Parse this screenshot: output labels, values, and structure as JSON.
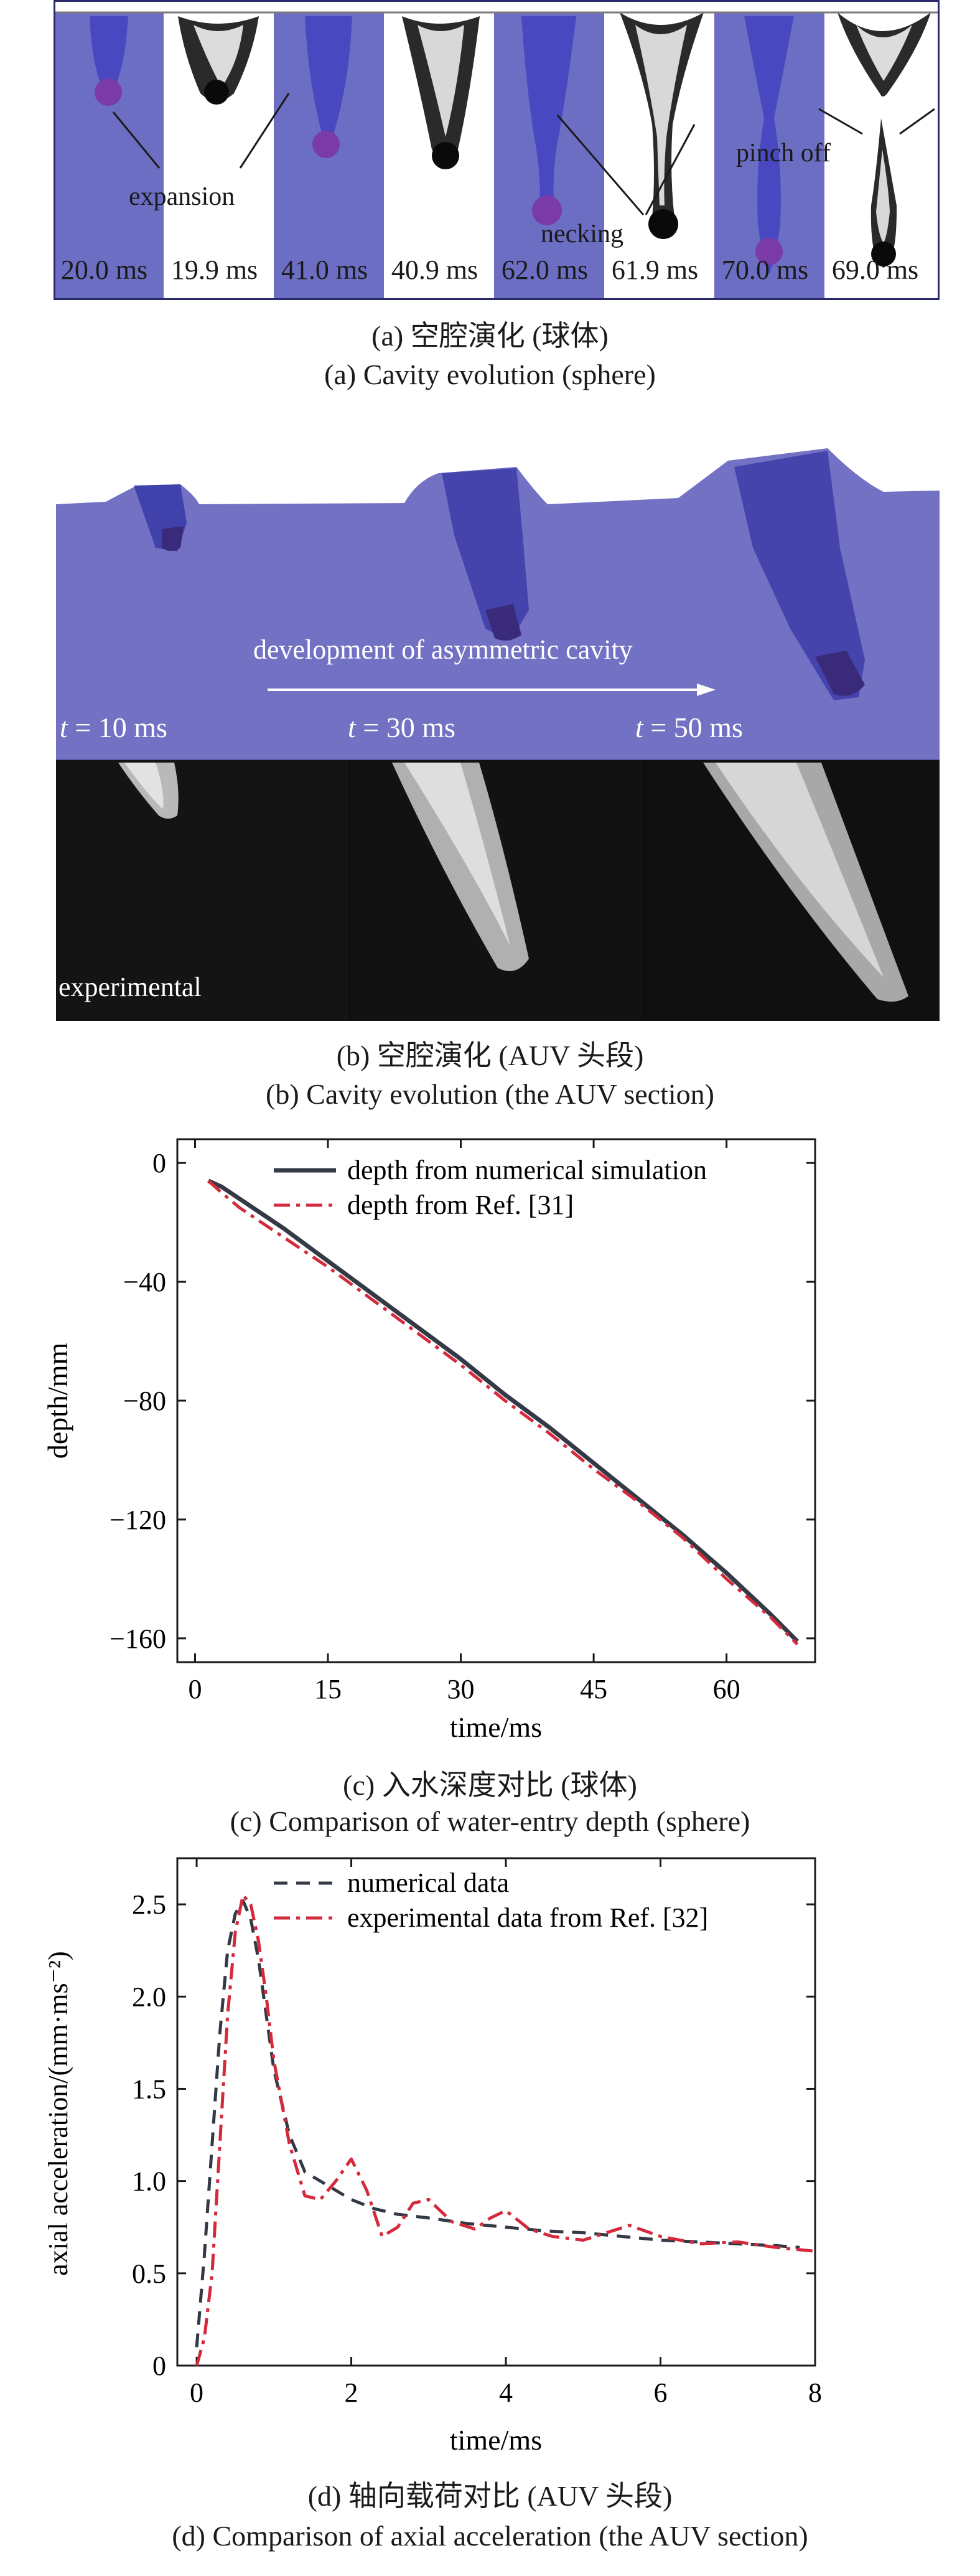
{
  "panel_a": {
    "frames": [
      "20.0 ms",
      "19.9 ms",
      "41.0 ms",
      "40.9 ms",
      "62.0 ms",
      "61.9 ms",
      "70.0 ms",
      "69.0 ms"
    ],
    "annotations": {
      "expansion": "expansion",
      "necking": "necking",
      "pinch_off": "pinch off"
    },
    "caption_cn": "(a) 空腔演化 (球体)",
    "caption_en": "(a) Cavity evolution (sphere)"
  },
  "panel_b": {
    "arrow_label": "development of asymmetric cavity",
    "times": [
      {
        "t": "t",
        "eq": " = 10 ms"
      },
      {
        "t": "t",
        "eq": " = 30 ms"
      },
      {
        "t": "t",
        "eq": " = 50 ms"
      }
    ],
    "experimental_label": "experimental",
    "caption_cn": "(b) 空腔演化 (AUV 头段)",
    "caption_en": "(b) Cavity evolution (the AUV section)"
  },
  "panel_c": {
    "caption_cn": "(c) 入水深度对比 (球体)",
    "caption_en": "(c) Comparison of water-entry depth (sphere)"
  },
  "panel_d": {
    "caption_cn": "(d) 轴向载荷对比 (AUV 头段)",
    "caption_en": "(d) Comparison of axial acceleration (the AUV section)"
  },
  "chart_data": [
    {
      "type": "line",
      "xlabel": "time/ms",
      "ylabel": "depth/mm",
      "xlim": [
        -2,
        70
      ],
      "ylim": [
        -168,
        8
      ],
      "xticks": [
        0,
        15,
        30,
        45,
        60
      ],
      "yticks": [
        0,
        -40,
        -80,
        -120,
        -160
      ],
      "ytick_labels": [
        "0",
        "−40",
        "−80",
        "−120",
        "−160"
      ],
      "legend_position": "top-right",
      "grid": false,
      "series": [
        {
          "name": "depth from numerical simulation",
          "color": "#333a45",
          "style": "solid",
          "x": [
            1.5,
            3,
            5,
            10,
            15,
            20,
            25,
            30,
            35,
            40,
            45,
            50,
            55,
            60,
            65,
            68
          ],
          "y": [
            -6,
            -8,
            -12,
            -22,
            -33,
            -44,
            -55,
            -66,
            -78,
            -89,
            -101,
            -113,
            -125,
            -138,
            -152,
            -161
          ]
        },
        {
          "name": "depth from Ref. [31]",
          "color": "#d42a3c",
          "style": "dashdot",
          "x": [
            1.5,
            3,
            5,
            10,
            15,
            20,
            25,
            30,
            35,
            40,
            45,
            50,
            55,
            60,
            65,
            68
          ],
          "y": [
            -6,
            -10,
            -15,
            -25,
            -35,
            -46,
            -57,
            -68,
            -80,
            -91,
            -103,
            -114,
            -126,
            -140,
            -153,
            -162
          ]
        }
      ]
    },
    {
      "type": "line",
      "xlabel": "time/ms",
      "ylabel": "axial acceleration/(mm·ms⁻²)",
      "xlim": [
        -0.25,
        8
      ],
      "ylim": [
        0,
        2.75
      ],
      "xticks": [
        0,
        2,
        4,
        6,
        8
      ],
      "yticks": [
        0,
        0.5,
        1.0,
        1.5,
        2.0,
        2.5
      ],
      "ytick_labels": [
        "0",
        "0.5",
        "1.0",
        "1.5",
        "2.0",
        "2.5"
      ],
      "legend_position": "top-right",
      "grid": false,
      "series": [
        {
          "name": "numerical data",
          "color": "#333a45",
          "style": "dashed",
          "x": [
            0,
            0.1,
            0.2,
            0.3,
            0.4,
            0.5,
            0.6,
            0.7,
            0.8,
            0.9,
            1.0,
            1.2,
            1.4,
            1.6,
            1.8,
            2.0,
            2.3,
            2.6,
            3.0,
            3.5,
            4.0,
            4.5,
            5.0,
            5.5,
            6.0,
            6.5,
            7.0,
            7.5,
            7.8
          ],
          "y": [
            0.1,
            0.6,
            1.2,
            1.8,
            2.25,
            2.45,
            2.52,
            2.42,
            2.2,
            1.9,
            1.6,
            1.25,
            1.05,
            1.0,
            0.95,
            0.9,
            0.85,
            0.82,
            0.8,
            0.77,
            0.75,
            0.73,
            0.72,
            0.7,
            0.68,
            0.67,
            0.66,
            0.65,
            0.64
          ]
        },
        {
          "name": "experimental data from Ref. [32]",
          "color": "#d42a3c",
          "style": "dashdot",
          "x": [
            0,
            0.1,
            0.2,
            0.3,
            0.4,
            0.5,
            0.6,
            0.7,
            0.8,
            0.9,
            1.0,
            1.2,
            1.4,
            1.6,
            1.8,
            2.0,
            2.2,
            2.4,
            2.6,
            2.8,
            3.0,
            3.3,
            3.6,
            3.8,
            4.0,
            4.3,
            4.6,
            5.0,
            5.3,
            5.6,
            6.0,
            6.5,
            7.0,
            7.5,
            8.0
          ],
          "y": [
            0.0,
            0.15,
            0.5,
            1.2,
            1.9,
            2.35,
            2.55,
            2.5,
            2.3,
            2.0,
            1.65,
            1.2,
            0.92,
            0.9,
            1.0,
            1.12,
            0.95,
            0.7,
            0.75,
            0.88,
            0.9,
            0.78,
            0.74,
            0.8,
            0.84,
            0.74,
            0.7,
            0.68,
            0.72,
            0.76,
            0.7,
            0.66,
            0.67,
            0.64,
            0.62
          ]
        }
      ]
    }
  ]
}
